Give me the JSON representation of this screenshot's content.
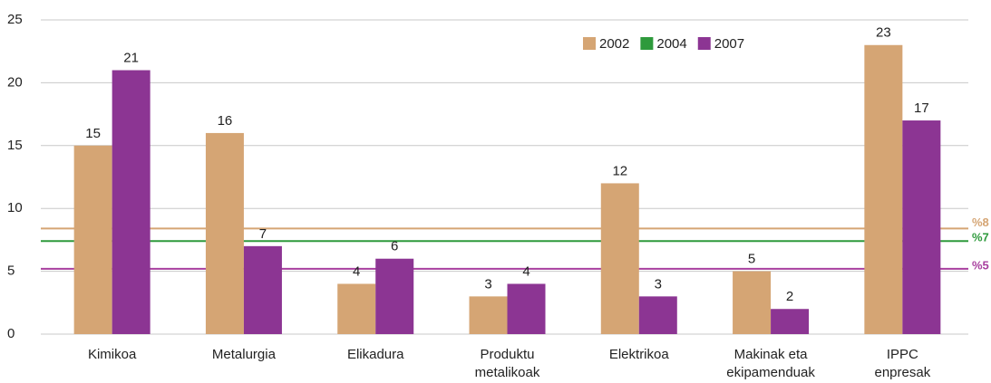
{
  "chart_data": {
    "type": "bar",
    "categories": [
      [
        "Kimikoa"
      ],
      [
        "Metalurgia"
      ],
      [
        "Elikadura"
      ],
      [
        "Produktu",
        "metalikoak"
      ],
      [
        "Elektrikoa"
      ],
      [
        "Makinak eta",
        "ekipamenduak"
      ],
      [
        "IPPC",
        "enpresak"
      ]
    ],
    "series": [
      {
        "name": "2002",
        "color": "#d5a574",
        "values": [
          15,
          16,
          4,
          3,
          12,
          5,
          23
        ]
      },
      {
        "name": "2004",
        "color": "#2e9a3c",
        "values": [
          null,
          null,
          null,
          null,
          null,
          null,
          null
        ]
      },
      {
        "name": "2007",
        "color": "#8c3593",
        "values": [
          21,
          7,
          6,
          4,
          3,
          2,
          17
        ]
      }
    ],
    "reference_lines": [
      {
        "value": 8.4,
        "label": "%8",
        "color": "#d5a574"
      },
      {
        "value": 7.4,
        "label": "%7",
        "color": "#2e9a3c"
      },
      {
        "value": 5.2,
        "label": "%5",
        "color": "#a8409f"
      }
    ],
    "ylim": [
      0,
      25
    ],
    "yticks": [
      0,
      5,
      10,
      15,
      20,
      25
    ],
    "grid": true,
    "legend": "top-right"
  }
}
